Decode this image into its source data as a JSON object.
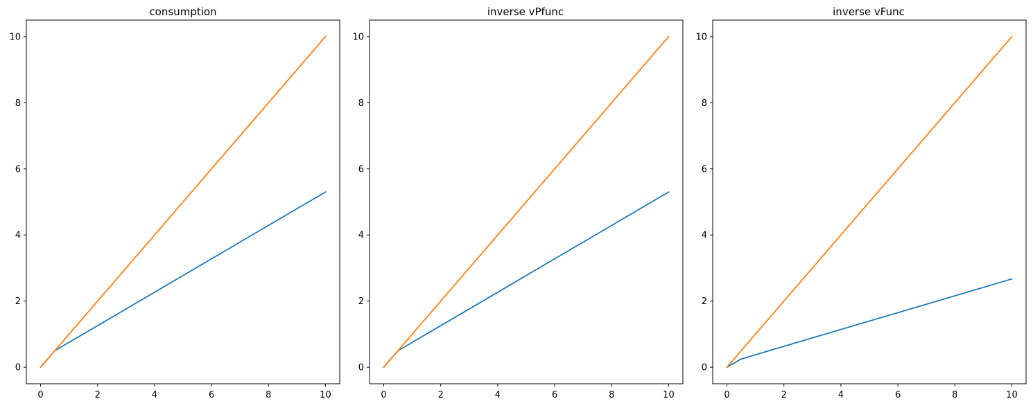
{
  "chart_data": [
    {
      "type": "line",
      "title": "consumption",
      "xlabel": "",
      "ylabel": "",
      "xlim": [
        -0.5,
        10.5
      ],
      "ylim": [
        -0.5,
        10.5
      ],
      "xticks": [
        0,
        2,
        4,
        6,
        8,
        10
      ],
      "yticks": [
        0,
        2,
        4,
        6,
        8,
        10
      ],
      "grid": false,
      "series": [
        {
          "color": "#1f77b4",
          "x": [
            0,
            0.5,
            10
          ],
          "y": [
            0,
            0.5,
            5.3
          ]
        },
        {
          "color": "#ff7f0e",
          "x": [
            0,
            10
          ],
          "y": [
            0,
            10
          ]
        }
      ]
    },
    {
      "type": "line",
      "title": "inverse vPfunc",
      "xlabel": "",
      "ylabel": "",
      "xlim": [
        -0.5,
        10.5
      ],
      "ylim": [
        -0.5,
        10.5
      ],
      "xticks": [
        0,
        2,
        4,
        6,
        8,
        10
      ],
      "yticks": [
        0,
        2,
        4,
        6,
        8,
        10
      ],
      "grid": false,
      "series": [
        {
          "color": "#1f77b4",
          "x": [
            0,
            0.5,
            10
          ],
          "y": [
            0,
            0.5,
            5.3
          ]
        },
        {
          "color": "#ff7f0e",
          "x": [
            0,
            10
          ],
          "y": [
            0,
            10
          ]
        }
      ]
    },
    {
      "type": "line",
      "title": "inverse vFunc",
      "xlabel": "",
      "ylabel": "",
      "xlim": [
        -0.5,
        10.5
      ],
      "ylim": [
        -0.5,
        10.5
      ],
      "xticks": [
        0,
        2,
        4,
        6,
        8,
        10
      ],
      "yticks": [
        0,
        2,
        4,
        6,
        8,
        10
      ],
      "grid": false,
      "series": [
        {
          "color": "#1f77b4",
          "x": [
            0,
            0.5,
            10
          ],
          "y": [
            0,
            0.25,
            2.67
          ]
        },
        {
          "color": "#ff7f0e",
          "x": [
            0,
            10
          ],
          "y": [
            0,
            10
          ]
        }
      ]
    }
  ]
}
